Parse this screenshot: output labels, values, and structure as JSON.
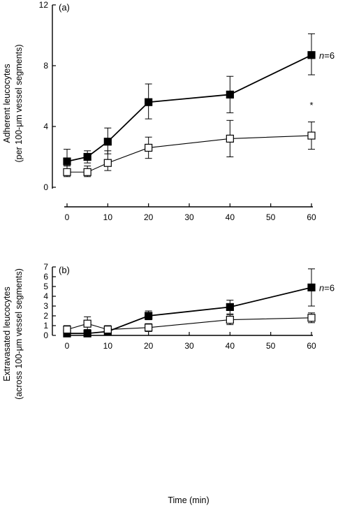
{
  "chart_data": [
    {
      "type": "line",
      "panel_label": "(a)",
      "ylabel_line1": "Adherent leucocytes",
      "ylabel_line2": "(per 100-μm vessel segments)",
      "xlabel": "",
      "xlim": [
        0,
        60
      ],
      "ylim": [
        0,
        12
      ],
      "xticks": [
        0,
        10,
        20,
        30,
        40,
        50,
        60
      ],
      "yticks": [
        0,
        4,
        8,
        12
      ],
      "x": [
        0,
        5,
        10,
        20,
        40,
        60
      ],
      "series": [
        {
          "marker": "filled-square",
          "values": [
            1.7,
            2.0,
            3.0,
            5.6,
            6.1,
            8.7
          ],
          "err_up": [
            2.5,
            2.4,
            3.9,
            6.8,
            7.3,
            10.1
          ],
          "err_down": [
            1.2,
            1.6,
            2.2,
            4.5,
            4.9,
            7.4
          ]
        },
        {
          "marker": "open-square",
          "values": [
            1.0,
            1.0,
            1.6,
            2.6,
            3.2,
            3.4
          ],
          "err_up": [
            1.4,
            1.4,
            2.4,
            3.3,
            4.4,
            4.3
          ],
          "err_down": [
            0.7,
            0.7,
            1.1,
            1.9,
            2.0,
            2.5
          ]
        }
      ],
      "annotations": {
        "n_prefix": "n",
        "n_value": "=6",
        "significance": "*"
      }
    },
    {
      "type": "line",
      "panel_label": "(b)",
      "ylabel_line1": "Extravasated leucocytes",
      "ylabel_line2": "(across 100-μm vessel segments)",
      "xlabel": "Time (min)",
      "xlim": [
        0,
        60
      ],
      "ylim": [
        0,
        7
      ],
      "xticks": [
        0,
        10,
        20,
        30,
        40,
        50,
        60
      ],
      "yticks": [
        0,
        1,
        2,
        3,
        4,
        5,
        6,
        7
      ],
      "x": [
        0,
        5,
        10,
        20,
        40,
        60
      ],
      "series": [
        {
          "marker": "filled-square",
          "values": [
            0.2,
            0.2,
            0.4,
            2.0,
            2.9,
            4.9
          ],
          "err_up": [
            0.2,
            0.2,
            0.9,
            2.5,
            3.6,
            6.8
          ],
          "err_down": [
            0.2,
            0.2,
            0.1,
            1.6,
            2.2,
            3.0
          ]
        },
        {
          "marker": "open-square",
          "values": [
            0.6,
            1.2,
            0.6,
            0.8,
            1.6,
            1.8
          ],
          "err_up": [
            1.0,
            1.9,
            1.0,
            1.2,
            2.1,
            2.3
          ],
          "err_down": [
            0.2,
            0.6,
            0.2,
            0.4,
            1.1,
            1.3
          ]
        }
      ],
      "annotations": {
        "n_prefix": "n",
        "n_value": "=6"
      }
    }
  ]
}
